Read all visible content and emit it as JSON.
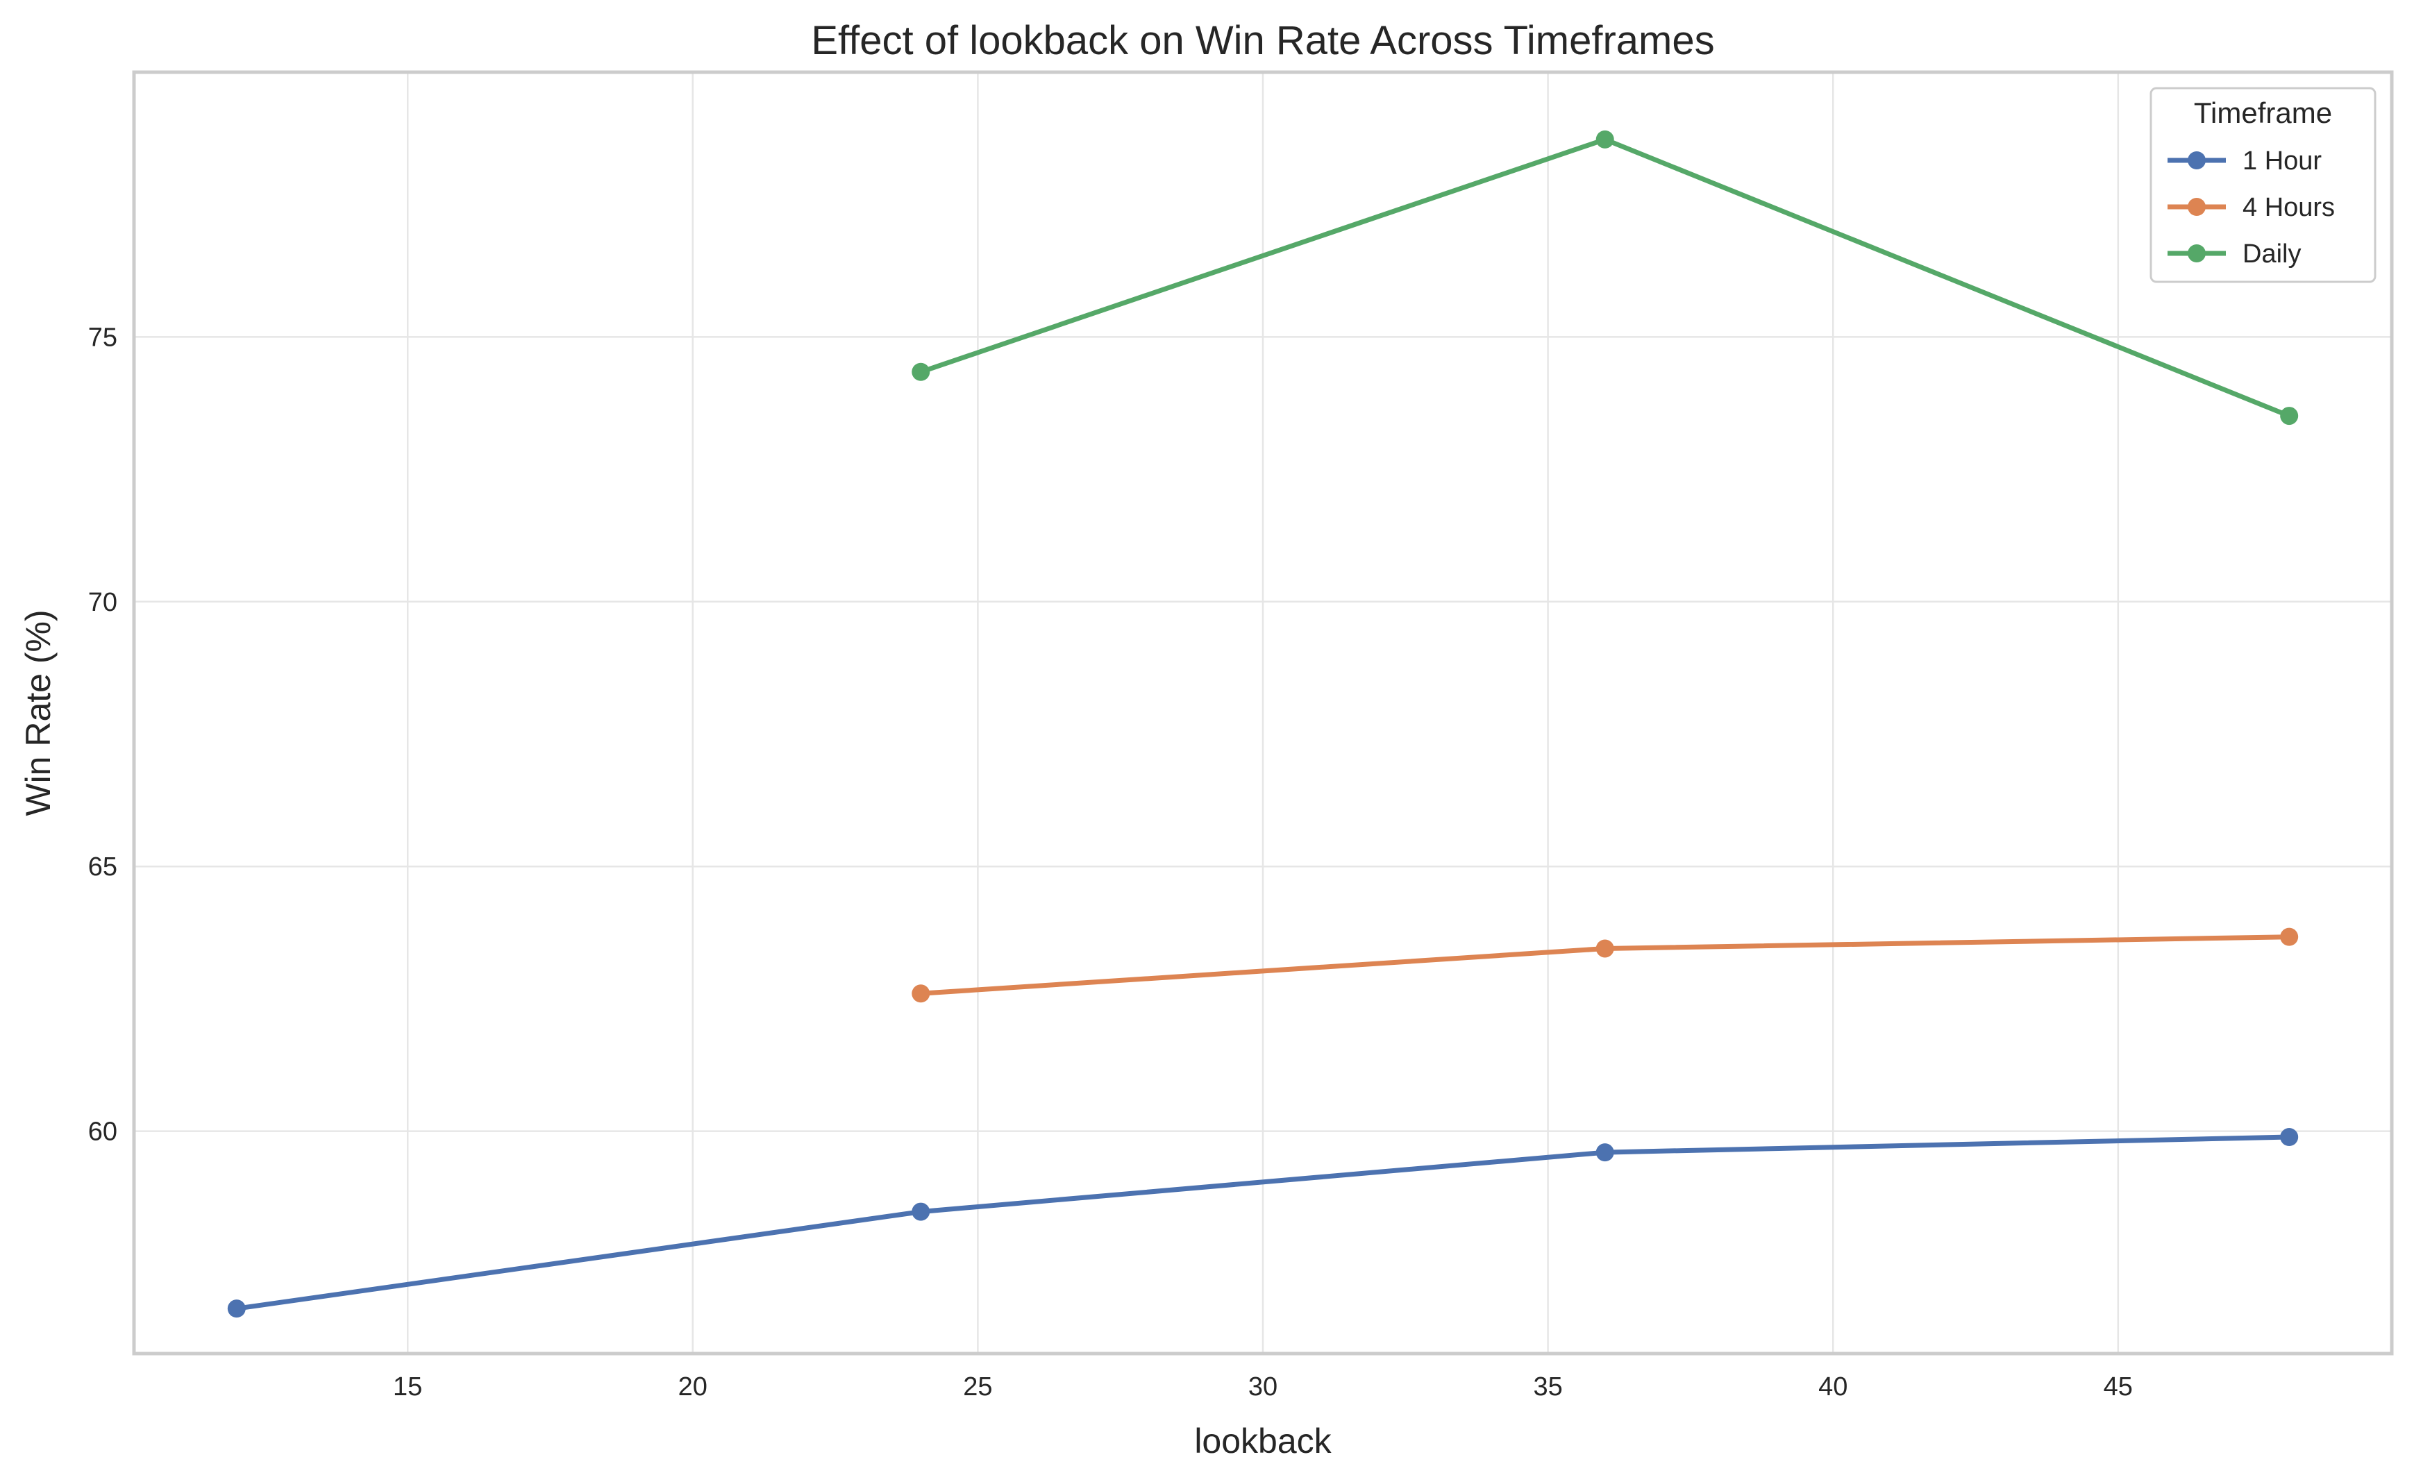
{
  "chart_data": {
    "type": "line",
    "title": "Effect of lookback on Win Rate Across Timeframes",
    "xlabel": "lookback",
    "ylabel": "Win Rate (%)",
    "xlim": [
      10.2,
      49.8
    ],
    "ylim": [
      55.8,
      80.0
    ],
    "xticks": [
      15,
      20,
      25,
      30,
      35,
      40,
      45
    ],
    "yticks": [
      60,
      65,
      70,
      75
    ],
    "grid": true,
    "legend": {
      "title": "Timeframe",
      "position": "top-right"
    },
    "series": [
      {
        "name": "1 Hour",
        "color": "#4c72b0",
        "x": [
          12,
          24,
          36,
          48
        ],
        "y": [
          56.65,
          58.48,
          59.6,
          59.89
        ]
      },
      {
        "name": "4 Hours",
        "color": "#dd8452",
        "x": [
          24,
          36,
          48
        ],
        "y": [
          62.6,
          63.45,
          63.67
        ]
      },
      {
        "name": "Daily",
        "color": "#55a868",
        "x": [
          24,
          36,
          48
        ],
        "y": [
          74.34,
          78.73,
          73.51
        ]
      }
    ]
  }
}
